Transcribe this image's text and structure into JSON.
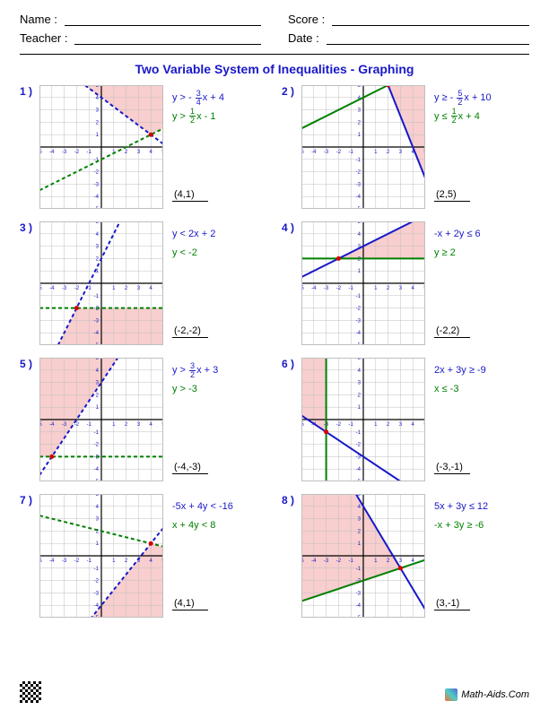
{
  "header": {
    "name_label": "Name :",
    "teacher_label": "Teacher :",
    "score_label": "Score :",
    "date_label": "Date :"
  },
  "title": "Two Variable System of Inequalities - Graphing",
  "chart_style": {
    "xlim": [
      -5,
      5
    ],
    "ylim": [
      -5,
      5
    ],
    "tick_step": 1,
    "grid_color": "#bfbfbf",
    "axis_color": "#000000",
    "tick_mark_color": "#1818c8",
    "shade_fill": "#f7c6c6",
    "shade_opacity": 0.85,
    "line_width": 2,
    "dash_pattern": "4,3",
    "background": "#ffffff",
    "ineq1_color": "#1818c8",
    "ineq2_color": "#008000",
    "point_color": "#d40000",
    "tick_fontsize": 6
  },
  "problems": [
    {
      "num": "1 )",
      "ineq1_html": "y > - <span class='frac'><span class='n'>3</span><span class='d'>4</span></span>x + 4",
      "ineq2_html": "y > <span class='frac'><span class='n'>1</span><span class='d'>2</span></span>x - 1",
      "answer": "(4,1)",
      "line1": {
        "m": -0.75,
        "b": 4,
        "dashed": true
      },
      "line2": {
        "m": 0.5,
        "b": -1,
        "dashed": true
      },
      "shade_poly": [
        [
          4,
          1
        ],
        [
          5,
          1.5
        ],
        [
          5,
          5
        ],
        [
          -1.333,
          5
        ]
      ],
      "point": [
        4,
        1
      ]
    },
    {
      "num": "2 )",
      "ineq1_html": "y &#8805; - <span class='frac'><span class='n'>5</span><span class='d'>2</span></span>x + 10",
      "ineq2_html": "y &#8804; <span class='frac'><span class='n'>1</span><span class='d'>2</span></span>x + 4",
      "answer": "(2,5)",
      "line1": {
        "m": -2.5,
        "b": 10,
        "dashed": false
      },
      "line2": {
        "m": 0.5,
        "b": 4,
        "dashed": false
      },
      "shade_poly": [
        [
          2,
          5
        ],
        [
          5,
          -2.5
        ],
        [
          5,
          5
        ]
      ],
      "point": [
        2,
        5
      ]
    },
    {
      "num": "3 )",
      "ineq1_html": "y < 2x + 2",
      "ineq2_html": "y < -2",
      "answer": "(-2,-2)",
      "line1": {
        "m": 2,
        "b": 2,
        "dashed": true
      },
      "line2": {
        "m": 0,
        "b": -2,
        "dashed": true
      },
      "shade_poly": [
        [
          -2,
          -2
        ],
        [
          5,
          -2
        ],
        [
          5,
          -5
        ],
        [
          -3.5,
          -5
        ]
      ],
      "point": [
        -2,
        -2
      ]
    },
    {
      "num": "4 )",
      "ineq1_html": "-x + 2y &#8804; 6",
      "ineq2_html": "y &#8805; 2",
      "answer": "(-2,2)",
      "line1": {
        "m": 0.5,
        "b": 3,
        "dashed": false
      },
      "line2": {
        "m": 0,
        "b": 2,
        "dashed": false
      },
      "shade_poly": [
        [
          -2,
          2
        ],
        [
          5,
          2
        ],
        [
          5,
          5
        ],
        [
          4,
          5
        ]
      ],
      "point": [
        -2,
        2
      ]
    },
    {
      "num": "5 )",
      "ineq1_html": "y > <span class='frac'><span class='n'>3</span><span class='d'>2</span></span>x + 3",
      "ineq2_html": "y > -3",
      "answer": "(-4,-3)",
      "line1": {
        "m": 1.5,
        "b": 3,
        "dashed": true
      },
      "line2": {
        "m": 0,
        "b": -3,
        "dashed": true
      },
      "shade_poly": [
        [
          -4,
          -3
        ],
        [
          -5,
          -3
        ],
        [
          -5,
          5
        ],
        [
          1.333,
          5
        ]
      ],
      "point": [
        -4,
        -3
      ]
    },
    {
      "num": "6 )",
      "ineq1_html": "2x + 3y &#8805; -9",
      "ineq2_html": "x &#8804; -3",
      "answer": "(-3,-1)",
      "line1": {
        "m": -0.6667,
        "b": -3,
        "dashed": false
      },
      "line2": {
        "vertical": true,
        "x": -3,
        "dashed": false
      },
      "shade_poly": [
        [
          -3,
          -1
        ],
        [
          -3,
          5
        ],
        [
          -5,
          5
        ],
        [
          -5,
          0.333
        ]
      ],
      "point": [
        -3,
        -1
      ]
    },
    {
      "num": "7 )",
      "ineq1_html": "-5x + 4y < -16",
      "ineq2_html": "x + 4y < 8",
      "answer": "(4,1)",
      "line1": {
        "m": 1.25,
        "b": -4,
        "dashed": true
      },
      "line2": {
        "m": -0.25,
        "b": 2,
        "dashed": true
      },
      "shade_poly": [
        [
          4,
          1
        ],
        [
          5,
          0.75
        ],
        [
          5,
          -5
        ],
        [
          -0.8,
          -5
        ]
      ],
      "point": [
        4,
        1
      ]
    },
    {
      "num": "8 )",
      "ineq1_html": "5x + 3y &#8804; 12",
      "ineq2_html": "-x + 3y &#8805; -6",
      "answer": "(3,-1)",
      "line1": {
        "m": -1.6667,
        "b": 4,
        "dashed": false
      },
      "line2": {
        "m": 0.3333,
        "b": -2,
        "dashed": false
      },
      "shade_poly": [
        [
          3,
          -1
        ],
        [
          -5,
          -3.667
        ],
        [
          -5,
          5
        ],
        [
          -0.6,
          5
        ]
      ],
      "point": [
        3,
        -1
      ]
    }
  ],
  "footer": "Math-Aids.Com"
}
